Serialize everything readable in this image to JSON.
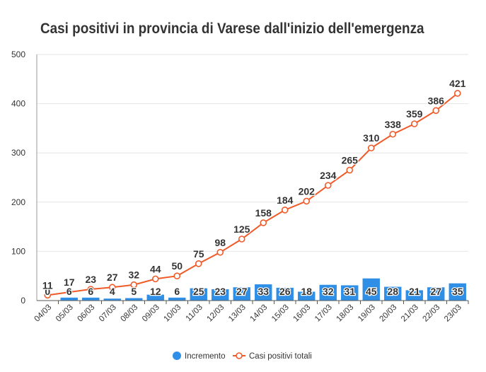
{
  "chart_data": {
    "type": "bar",
    "title": "Casi positivi in provincia di Varese dall'inizio dell'emergenza",
    "categories": [
      "04/03",
      "05/03",
      "06/03",
      "07/03",
      "08/03",
      "09/03",
      "10/03",
      "11/03",
      "12/03",
      "13/03",
      "14/03",
      "15/03",
      "16/03",
      "17/03",
      "18/03",
      "19/03",
      "20/03",
      "21/03",
      "22/03",
      "23/03"
    ],
    "series": [
      {
        "name": "Incremento",
        "type": "bar",
        "color": "#2f8fe6",
        "values": [
          0,
          6,
          6,
          4,
          5,
          12,
          6,
          25,
          23,
          27,
          33,
          26,
          18,
          32,
          31,
          45,
          28,
          21,
          27,
          35
        ]
      },
      {
        "name": "Casi positivi totali",
        "type": "line",
        "color": "#f05a28",
        "values": [
          11,
          17,
          23,
          27,
          32,
          44,
          50,
          75,
          98,
          125,
          158,
          184,
          202,
          234,
          265,
          310,
          338,
          359,
          386,
          421
        ]
      }
    ],
    "yticks": [
      "0",
      "100",
      "200",
      "300",
      "400",
      "500"
    ],
    "ylim": [
      0,
      500
    ],
    "grid": true,
    "legend_position": "bottom-center"
  }
}
